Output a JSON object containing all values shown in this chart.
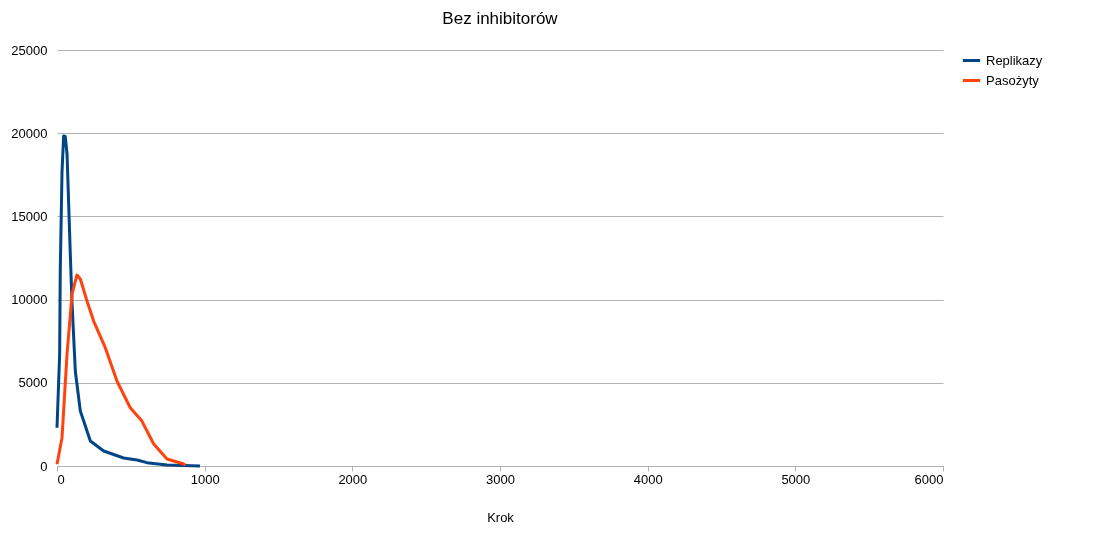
{
  "chart_data": {
    "type": "line",
    "title": "Bez inhibitorów",
    "xlabel": "Krok",
    "xlim": [
      0,
      6000
    ],
    "xticks": [
      0,
      1000,
      2000,
      3000,
      4000,
      5000,
      6000
    ],
    "ylim": [
      0,
      25000
    ],
    "yticks": [
      0,
      5000,
      10000,
      15000,
      20000,
      25000
    ],
    "grid": "y",
    "legend": "right",
    "marker": "none",
    "line_style": "solid",
    "series": [
      {
        "name": "Replikazy",
        "color": "#004586",
        "x": [
          0,
          18,
          22,
          34,
          45,
          56,
          68,
          79,
          90,
          102,
          124,
          158,
          226,
          316,
          451,
          542,
          609,
          745,
          968
        ],
        "values": [
          2300,
          6730,
          11700,
          17700,
          19830,
          19800,
          18750,
          15750,
          12740,
          9740,
          5710,
          3300,
          1500,
          900,
          480,
          360,
          200,
          60,
          0
        ]
      },
      {
        "name": "Pasożyty",
        "color": "#ff420e",
        "x": [
          0,
          34,
          68,
          102,
          135,
          158,
          203,
          248,
          327,
          406,
          496,
          575,
          655,
          745,
          858,
          870
        ],
        "values": [
          100,
          1700,
          6730,
          10340,
          11480,
          11240,
          9920,
          8710,
          7110,
          5110,
          3500,
          2700,
          1320,
          420,
          120,
          50
        ]
      }
    ]
  }
}
